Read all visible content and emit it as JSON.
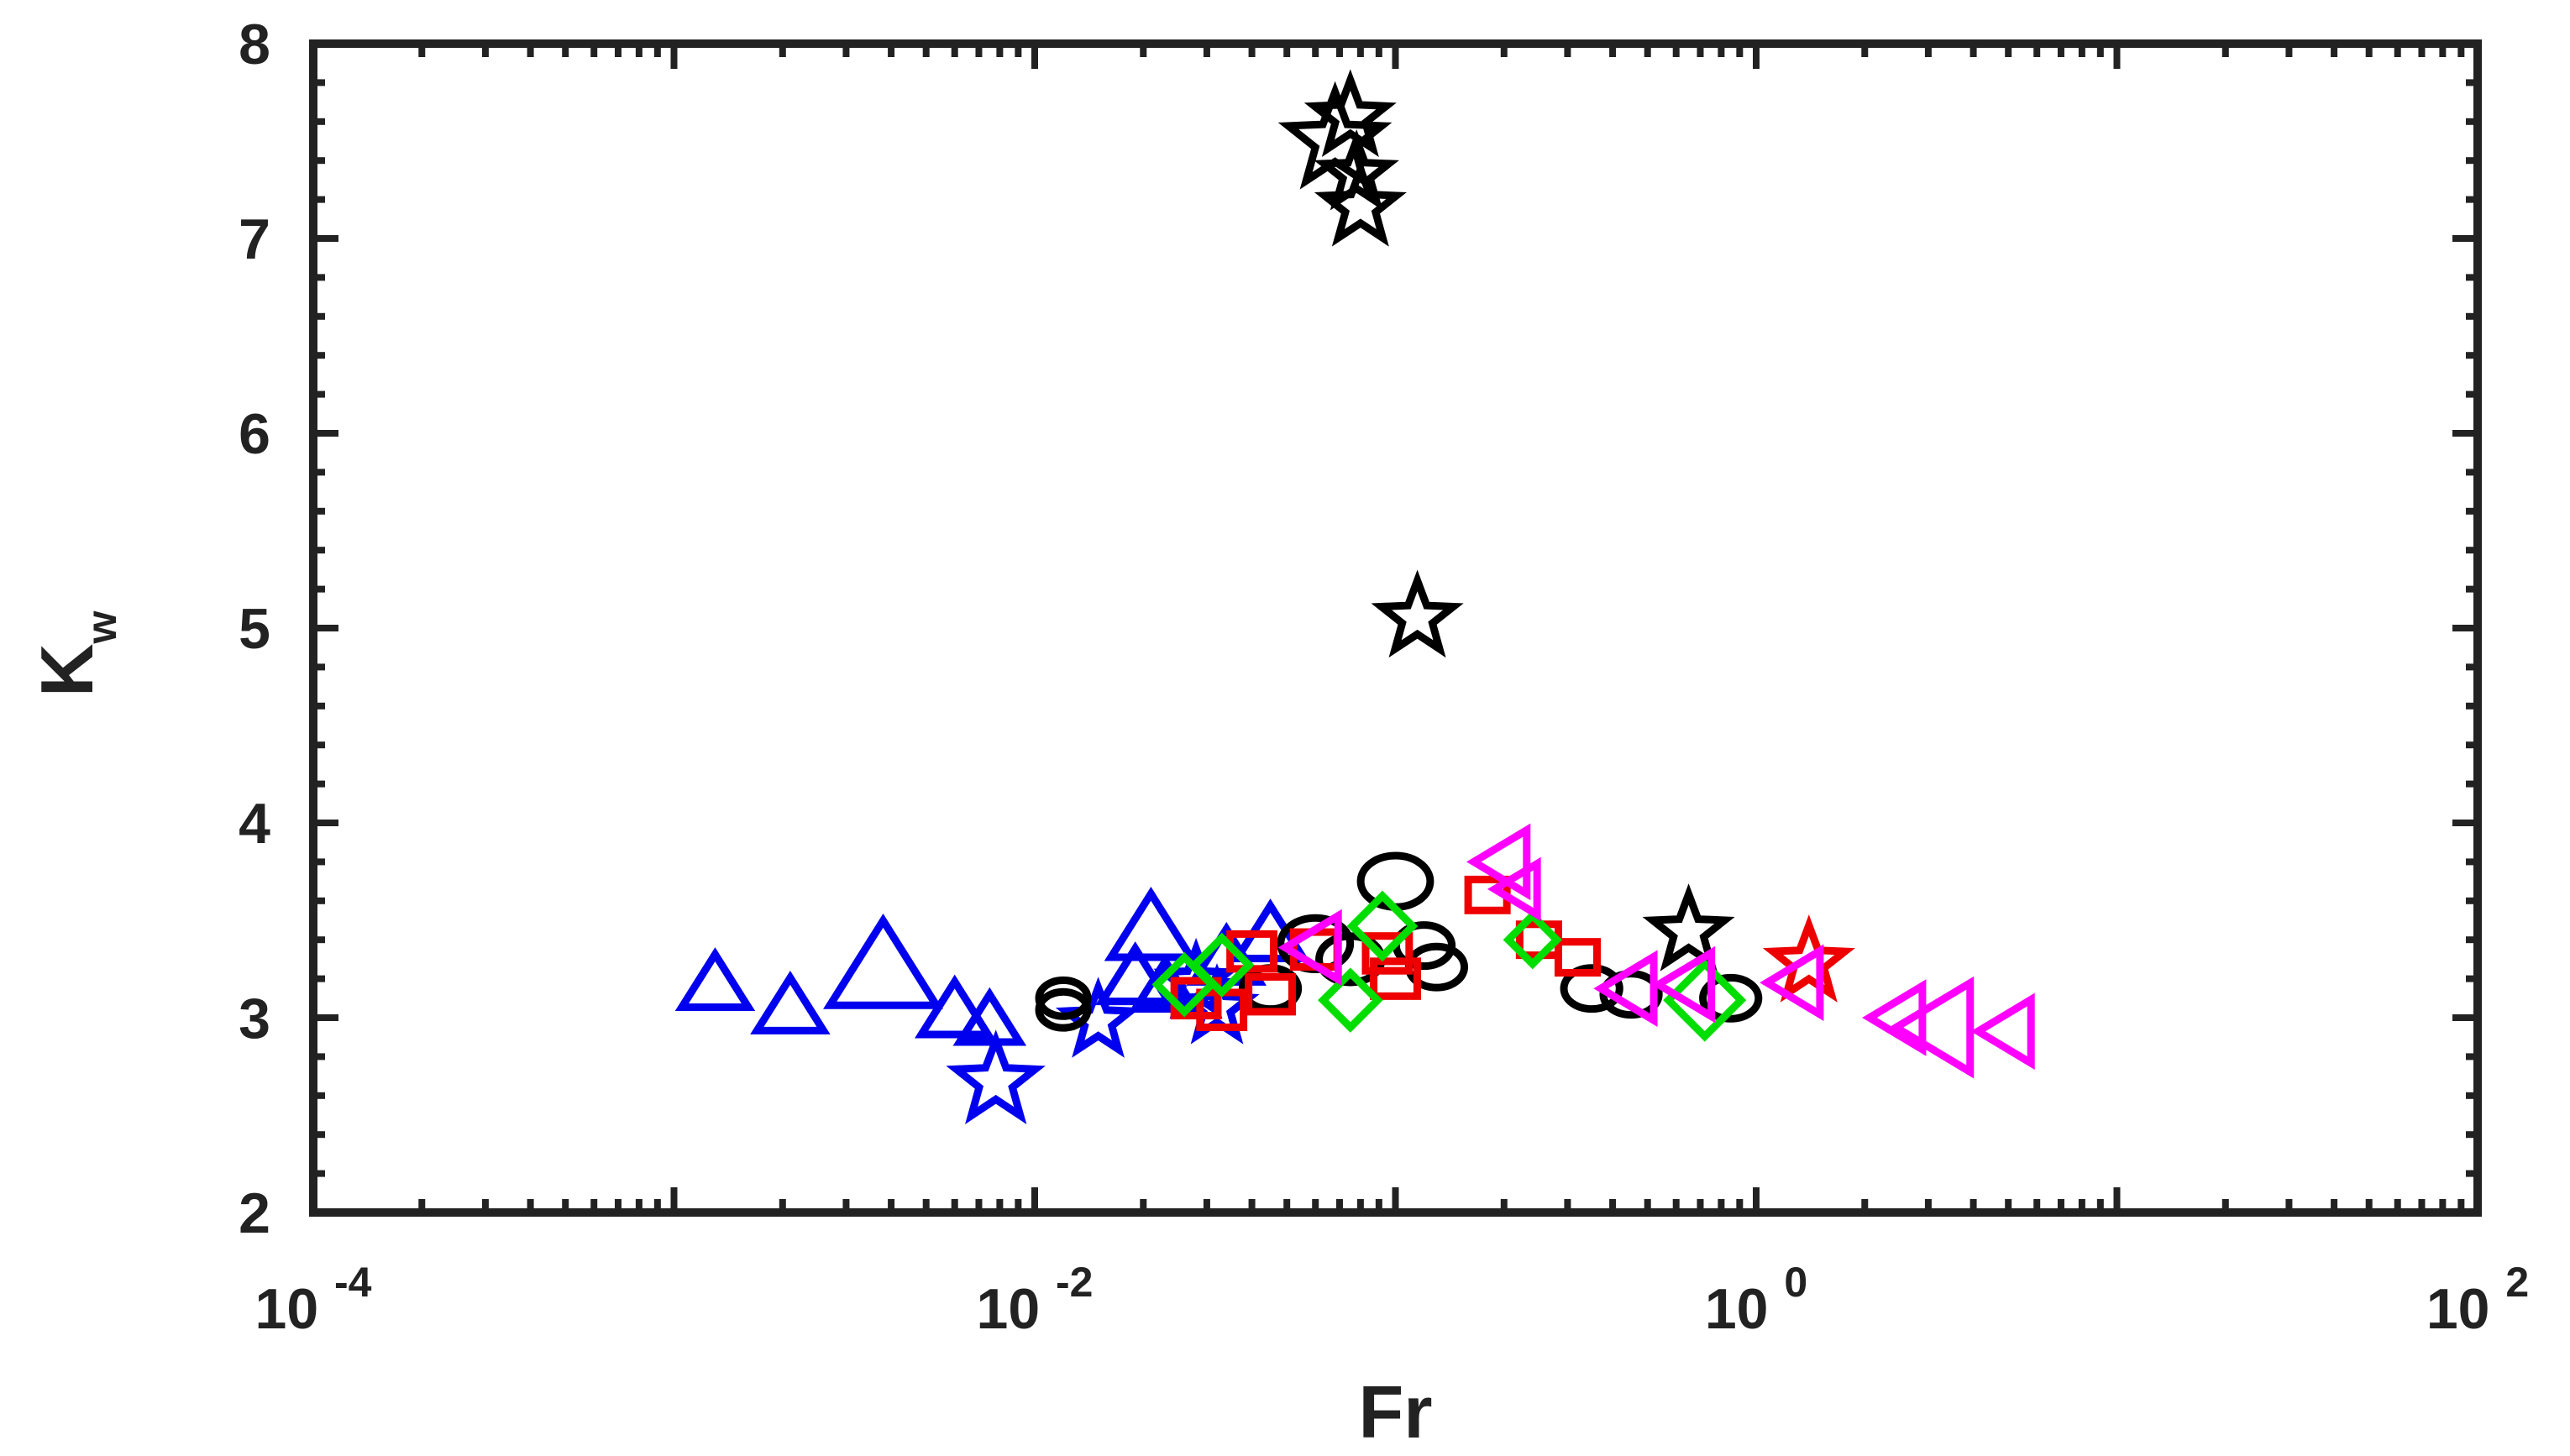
{
  "chart_data": {
    "type": "scatter",
    "title": "",
    "xlabel": "Fr",
    "ylabel": "K",
    "ylabel_subscript": "w",
    "x_scale": "log",
    "xlim": [
      0.0001,
      100
    ],
    "ylim": [
      2,
      8
    ],
    "grid": false,
    "legend": "none",
    "x_ticks": [
      {
        "value": 0.0001,
        "base": "10",
        "exp": "-4"
      },
      {
        "value": 0.01,
        "base": "10",
        "exp": "-2"
      },
      {
        "value": 1,
        "base": "10",
        "exp": "0"
      },
      {
        "value": 100,
        "base": "10",
        "exp": "2"
      }
    ],
    "y_ticks": [
      {
        "value": 2,
        "label": "2"
      },
      {
        "value": 3,
        "label": "3"
      },
      {
        "value": 4,
        "label": "4"
      },
      {
        "value": 5,
        "label": "5"
      },
      {
        "value": 6,
        "label": "6"
      },
      {
        "value": 7,
        "label": "7"
      },
      {
        "value": 8,
        "label": "8"
      }
    ],
    "series": [
      {
        "marker": "triangle-up",
        "color": "#0000ee",
        "points": [
          {
            "x": 0.0013,
            "y": 3.17,
            "s": 1.0
          },
          {
            "x": 0.0021,
            "y": 3.05,
            "s": 1.0
          },
          {
            "x": 0.0038,
            "y": 3.25,
            "s": 1.6
          },
          {
            "x": 0.006,
            "y": 3.03,
            "s": 1.0
          },
          {
            "x": 0.0075,
            "y": 2.98,
            "s": 0.9
          },
          {
            "x": 0.021,
            "y": 3.45,
            "s": 1.2
          },
          {
            "x": 0.019,
            "y": 3.2,
            "s": 1.0
          },
          {
            "x": 0.023,
            "y": 3.15,
            "s": 0.9
          },
          {
            "x": 0.034,
            "y": 3.3,
            "s": 1.0
          },
          {
            "x": 0.045,
            "y": 3.42,
            "s": 1.0
          }
        ]
      },
      {
        "marker": "star",
        "color": "#0000ee",
        "points": [
          {
            "x": 0.0078,
            "y": 2.67,
            "s": 1.1
          },
          {
            "x": 0.015,
            "y": 2.98,
            "s": 0.9
          },
          {
            "x": 0.028,
            "y": 3.18,
            "s": 0.9
          },
          {
            "x": 0.032,
            "y": 3.05,
            "s": 0.9
          }
        ]
      },
      {
        "marker": "circle",
        "color": "#000000",
        "points": [
          {
            "x": 0.012,
            "y": 3.1,
            "s": 0.7
          },
          {
            "x": 0.012,
            "y": 3.04,
            "s": 0.7
          },
          {
            "x": 0.045,
            "y": 3.15,
            "s": 0.8
          },
          {
            "x": 0.06,
            "y": 3.38,
            "s": 1.0
          },
          {
            "x": 0.075,
            "y": 3.3,
            "s": 0.9
          },
          {
            "x": 0.1,
            "y": 3.7,
            "s": 1.0
          },
          {
            "x": 0.12,
            "y": 3.37,
            "s": 0.8
          },
          {
            "x": 0.13,
            "y": 3.26,
            "s": 0.8
          },
          {
            "x": 0.35,
            "y": 3.15,
            "s": 0.8
          },
          {
            "x": 0.45,
            "y": 3.12,
            "s": 0.8
          },
          {
            "x": 0.85,
            "y": 3.1,
            "s": 0.8
          }
        ]
      },
      {
        "marker": "star",
        "color": "#000000",
        "points": [
          {
            "x": 0.068,
            "y": 7.5,
            "s": 1.3
          },
          {
            "x": 0.075,
            "y": 7.62,
            "s": 1.0
          },
          {
            "x": 0.078,
            "y": 7.33,
            "s": 0.9
          },
          {
            "x": 0.08,
            "y": 7.16,
            "s": 1.0
          },
          {
            "x": 0.115,
            "y": 5.05,
            "s": 1.0
          },
          {
            "x": 0.65,
            "y": 3.44,
            "s": 1.0
          }
        ]
      },
      {
        "marker": "square",
        "color": "#ee0000",
        "points": [
          {
            "x": 0.028,
            "y": 3.1,
            "s": 0.9
          },
          {
            "x": 0.033,
            "y": 3.04,
            "s": 0.9
          },
          {
            "x": 0.04,
            "y": 3.34,
            "s": 0.9
          },
          {
            "x": 0.045,
            "y": 3.12,
            "s": 0.9
          },
          {
            "x": 0.06,
            "y": 3.35,
            "s": 0.9
          },
          {
            "x": 0.095,
            "y": 3.33,
            "s": 0.9
          },
          {
            "x": 0.1,
            "y": 3.2,
            "s": 0.9
          },
          {
            "x": 0.18,
            "y": 3.63,
            "s": 0.8
          },
          {
            "x": 0.25,
            "y": 3.4,
            "s": 0.8
          },
          {
            "x": 0.32,
            "y": 3.31,
            "s": 0.8
          }
        ]
      },
      {
        "marker": "diamond",
        "color": "#00dd00",
        "points": [
          {
            "x": 0.026,
            "y": 3.17,
            "s": 0.9
          },
          {
            "x": 0.033,
            "y": 3.27,
            "s": 0.9
          },
          {
            "x": 0.075,
            "y": 3.09,
            "s": 0.9
          },
          {
            "x": 0.092,
            "y": 3.47,
            "s": 1.0
          },
          {
            "x": 0.24,
            "y": 3.4,
            "s": 0.8
          },
          {
            "x": 0.72,
            "y": 3.09,
            "s": 1.2
          }
        ]
      },
      {
        "marker": "star",
        "color": "#ee0000",
        "points": [
          {
            "x": 1.4,
            "y": 3.28,
            "s": 1.0
          }
        ]
      },
      {
        "marker": "triangle-left",
        "color": "#ff00ff",
        "points": [
          {
            "x": 0.06,
            "y": 3.36,
            "s": 1.0
          },
          {
            "x": 0.2,
            "y": 3.8,
            "s": 1.0
          },
          {
            "x": 0.22,
            "y": 3.66,
            "s": 0.8
          },
          {
            "x": 0.45,
            "y": 3.15,
            "s": 1.0
          },
          {
            "x": 0.65,
            "y": 3.17,
            "s": 1.0
          },
          {
            "x": 1.3,
            "y": 3.18,
            "s": 1.0
          },
          {
            "x": 2.5,
            "y": 3.0,
            "s": 1.0
          },
          {
            "x": 3.2,
            "y": 2.95,
            "s": 1.4
          },
          {
            "x": 5.0,
            "y": 2.93,
            "s": 1.0
          }
        ]
      }
    ]
  }
}
